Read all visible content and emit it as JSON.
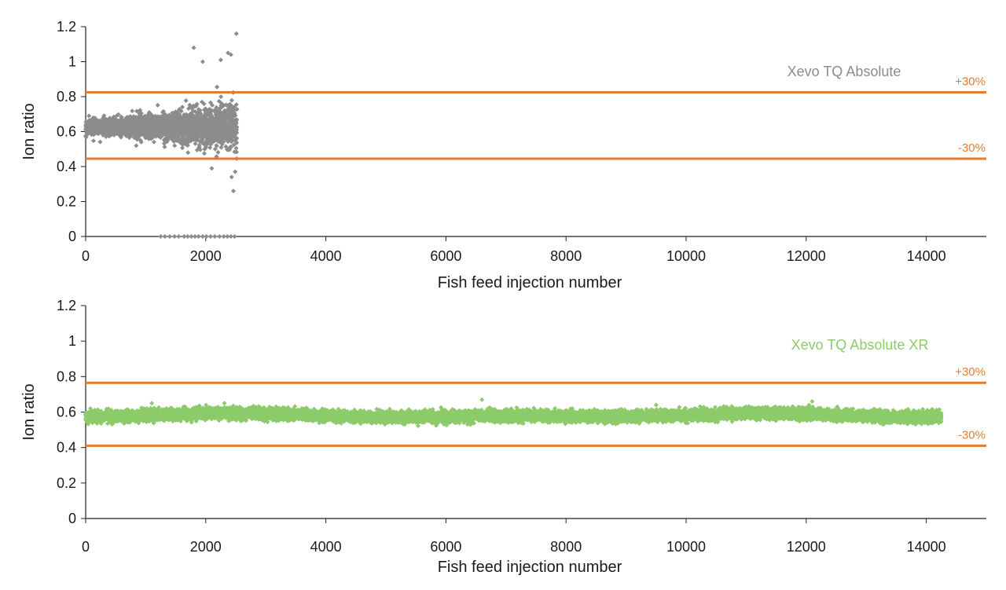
{
  "colors": {
    "axis": "#222222",
    "limit_line": "#E87A2E",
    "series_a": "#8C8C8C",
    "series_b": "#8DCB6A"
  },
  "chart_data": [
    {
      "type": "scatter",
      "xlabel": "Fish feed injection number",
      "ylabel": "Ion ratio",
      "xlim": [
        0,
        15000
      ],
      "ylim": [
        0,
        1.2
      ],
      "x_ticks": [
        "0",
        "2000",
        "4000",
        "6000",
        "8000",
        "10000",
        "12000",
        "14000"
      ],
      "x_tick_values": [
        0,
        2000,
        4000,
        6000,
        8000,
        10000,
        12000,
        14000
      ],
      "y_ticks": [
        "0",
        "0.2",
        "0.4",
        "0.6",
        "0.8",
        "1",
        "1.2"
      ],
      "y_tick_values": [
        0,
        0.2,
        0.4,
        0.6,
        0.8,
        1.0,
        1.2
      ],
      "grid": false,
      "series": [
        {
          "name": "Xevo TQ Absolute",
          "color": "#8C8C8C",
          "x_range": [
            0,
            2520
          ],
          "approx_points": 2500,
          "center": 0.63,
          "spread_at_start": 0.04,
          "spread_at_end": 0.14,
          "zero_value_points": [
            1250,
            1320,
            1400,
            1480,
            1550,
            1640,
            1700,
            1760,
            1820,
            1880,
            1950,
            2010,
            2080,
            2150,
            2230,
            2300,
            2360,
            2420,
            2480
          ],
          "outliers": [
            [
              1800,
              1.08
            ],
            [
              1950,
              1.0
            ],
            [
              2250,
              1.01
            ],
            [
              2370,
              1.05
            ],
            [
              2420,
              1.04
            ],
            [
              2510,
              1.16
            ],
            [
              2460,
              0.26
            ],
            [
              2430,
              0.34
            ],
            [
              2490,
              0.37
            ],
            [
              2100,
              0.39
            ]
          ]
        }
      ],
      "limits": [
        {
          "label": "+30%",
          "value": 0.825
        },
        {
          "label": "-30%",
          "value": 0.445
        }
      ]
    },
    {
      "type": "scatter",
      "xlabel": "Fish feed injection number",
      "ylabel": "Ion ratio",
      "xlim": [
        0,
        15000
      ],
      "ylim": [
        0,
        1.2
      ],
      "x_ticks": [
        "0",
        "2000",
        "4000",
        "6000",
        "8000",
        "10000",
        "12000",
        "14000"
      ],
      "x_tick_values": [
        0,
        2000,
        4000,
        6000,
        8000,
        10000,
        12000,
        14000
      ],
      "y_ticks": [
        "0",
        "0.2",
        "0.4",
        "0.6",
        "0.8",
        "1",
        "1.2"
      ],
      "y_tick_values": [
        0,
        0.2,
        0.4,
        0.6,
        0.8,
        1.0,
        1.2
      ],
      "grid": false,
      "series": [
        {
          "name": "Xevo TQ Absolute XR",
          "color": "#8DCB6A",
          "x_range": [
            0,
            14250
          ],
          "approx_points": 14200,
          "center": 0.58,
          "spread_at_start": 0.03,
          "spread_at_end": 0.03,
          "zero_value_points": [],
          "outliers": [
            [
              6600,
              0.67
            ],
            [
              12100,
              0.66
            ],
            [
              1100,
              0.65
            ],
            [
              9500,
              0.64
            ]
          ]
        }
      ],
      "limits": [
        {
          "label": "+30%",
          "value": 0.765
        },
        {
          "label": "-30%",
          "value": 0.41
        }
      ]
    }
  ]
}
